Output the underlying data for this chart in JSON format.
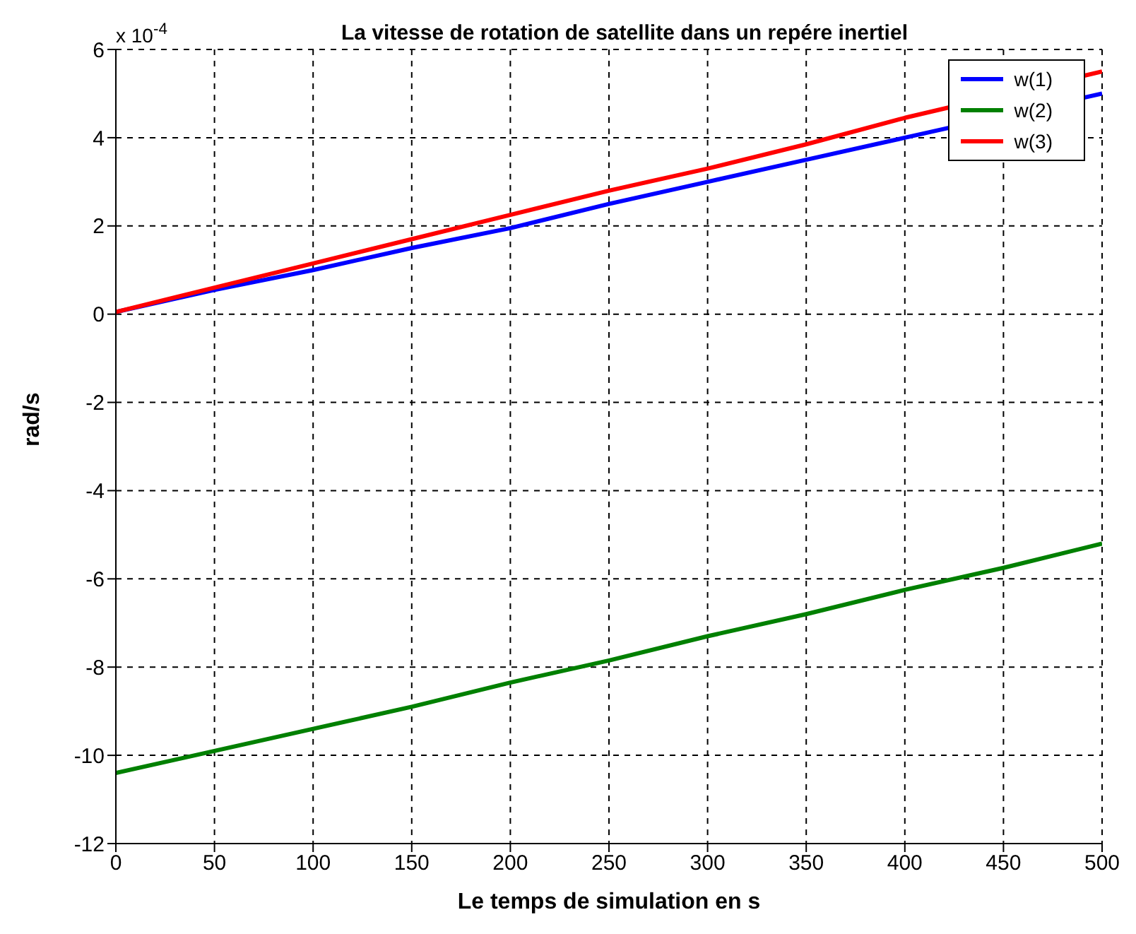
{
  "chart_data": {
    "type": "line",
    "title": "La vitesse de rotation de satellite dans un repére inertiel",
    "xlabel": "Le temps de simulation en s",
    "ylabel": "rad/s",
    "annotations": [
      "x 10$^{-4}$"
    ],
    "x": [
      0,
      50,
      100,
      150,
      200,
      250,
      300,
      350,
      400,
      450,
      500
    ],
    "series": [
      {
        "name": "w(1)",
        "color": "#0000ff",
        "values": [
          0.05,
          0.55,
          1.0,
          1.5,
          1.95,
          2.5,
          3.0,
          3.5,
          4.0,
          null,
          5.0
        ]
      },
      {
        "name": "w(2)",
        "color": "#008000",
        "values": [
          -10.4,
          -9.9,
          -9.4,
          -8.9,
          -8.35,
          -7.85,
          -7.3,
          -6.8,
          -6.25,
          -5.75,
          -5.2
        ]
      },
      {
        "name": "w(3)",
        "color": "#ff0000",
        "values": [
          0.05,
          0.6,
          1.15,
          1.7,
          2.25,
          2.8,
          3.3,
          3.85,
          4.45,
          null,
          5.5
        ]
      }
    ],
    "xlim": [
      0,
      500
    ],
    "xticks": [
      0,
      50,
      100,
      150,
      200,
      250,
      300,
      350,
      400,
      450,
      500
    ],
    "ylim": [
      -12,
      6
    ],
    "yticks": [
      -12,
      -10,
      -8,
      -6,
      -4,
      -2,
      0,
      2,
      4,
      6
    ],
    "grid": true,
    "legend": "top right",
    "marker": "none",
    "line_style": "solid"
  }
}
